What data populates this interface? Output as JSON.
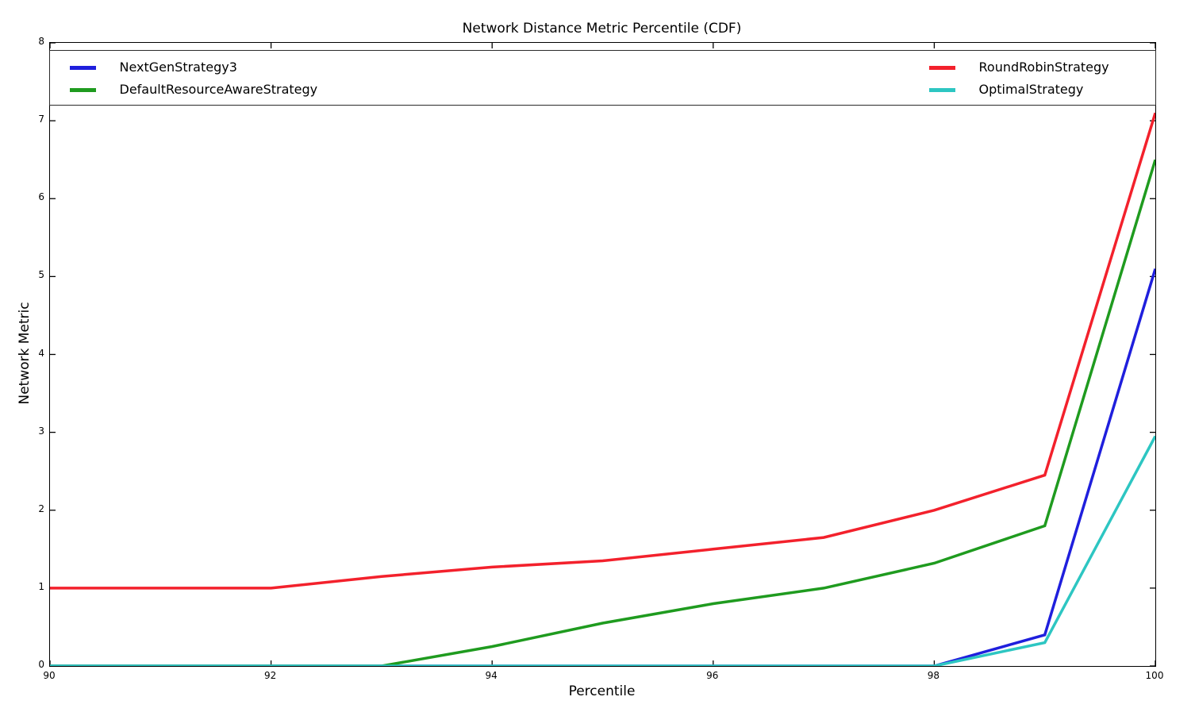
{
  "title": "Network Distance Metric Percentile (CDF)",
  "xlabel": "Percentile",
  "ylabel": "Network Metric",
  "chart_data": {
    "type": "line",
    "title": "Network Distance Metric Percentile (CDF)",
    "xlabel": "Percentile",
    "ylabel": "Network Metric",
    "xlim": [
      90,
      100
    ],
    "ylim": [
      0,
      8
    ],
    "xticks": [
      90,
      92,
      94,
      96,
      98,
      100
    ],
    "yticks": [
      0,
      1,
      2,
      3,
      4,
      5,
      6,
      7,
      8
    ],
    "grid": false,
    "legend_position": "top-expanded-two-columns",
    "x": [
      90,
      91,
      92,
      93,
      94,
      95,
      96,
      97,
      98,
      99,
      100
    ],
    "series": [
      {
        "name": "NextGenStrategy3",
        "color": "#1f1fdd",
        "legend_column": "left",
        "values": [
          0,
          0,
          0,
          0,
          0,
          0,
          0,
          0,
          0,
          0.4,
          5.1
        ]
      },
      {
        "name": "DefaultResourceAwareStrategy",
        "color": "#1f9b1f",
        "legend_column": "left",
        "values": [
          0,
          0,
          0,
          0,
          0.25,
          0.55,
          0.8,
          1.0,
          1.32,
          1.8,
          6.5
        ]
      },
      {
        "name": "RoundRobinStrategy",
        "color": "#f3212c",
        "legend_column": "right",
        "values": [
          1.0,
          1.0,
          1.0,
          1.15,
          1.27,
          1.35,
          1.5,
          1.65,
          2.0,
          2.45,
          7.1
        ]
      },
      {
        "name": "OptimalStrategy",
        "color": "#2dc6c2",
        "legend_column": "right",
        "values": [
          0,
          0,
          0,
          0,
          0,
          0,
          0,
          0,
          0,
          0.3,
          2.95
        ]
      }
    ]
  }
}
